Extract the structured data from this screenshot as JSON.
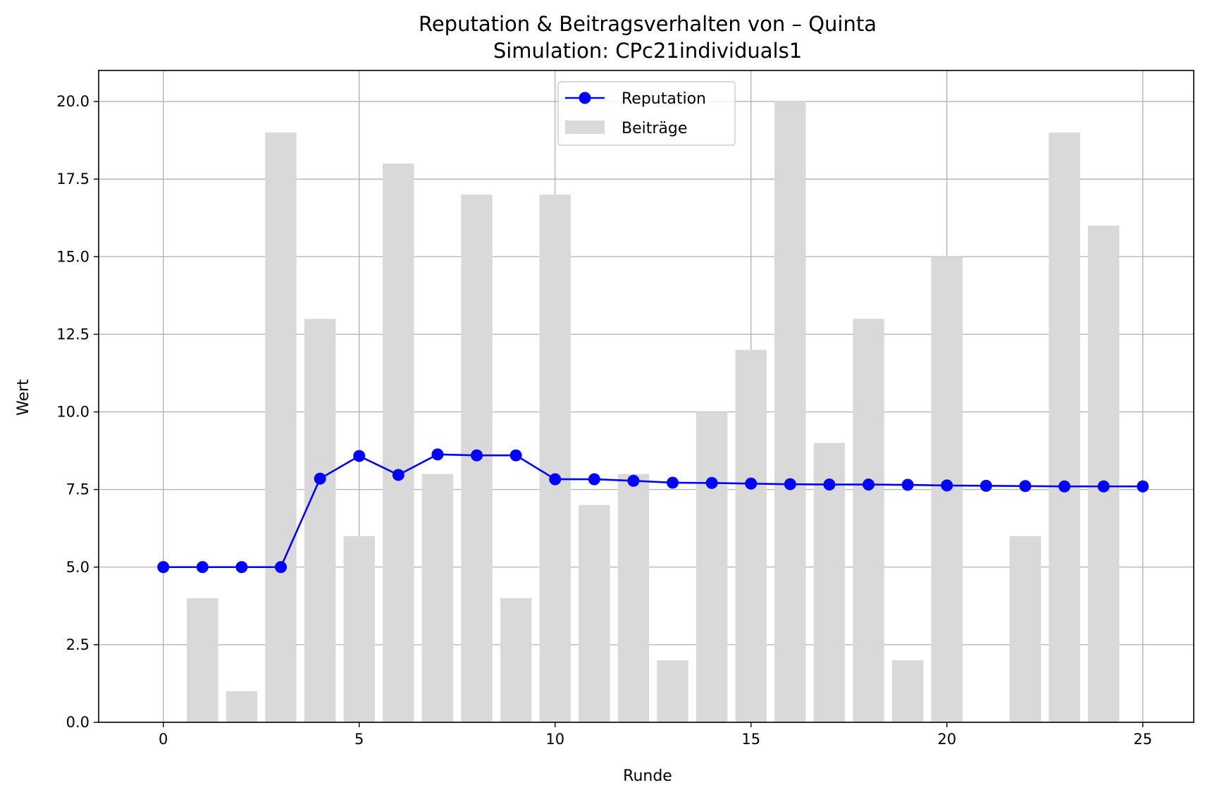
{
  "chart_data": {
    "type": "bar",
    "title": "Reputation & Beitragsverhalten von – Quinta",
    "subtitle": "Simulation: CPc21individuals1",
    "xlabel": "Runde",
    "ylabel": "Wert",
    "xlim": [
      -1.65,
      26.3
    ],
    "ylim": [
      0,
      21
    ],
    "x_ticks": [
      0,
      5,
      10,
      15,
      20,
      25
    ],
    "y_ticks": [
      0.0,
      2.5,
      5.0,
      7.5,
      10.0,
      12.5,
      15.0,
      17.5,
      20.0
    ],
    "grid": true,
    "legend_position": "top-center",
    "x": [
      0,
      1,
      2,
      3,
      4,
      5,
      6,
      7,
      8,
      9,
      10,
      11,
      12,
      13,
      14,
      15,
      16,
      17,
      18,
      19,
      20,
      21,
      22,
      23,
      24,
      25
    ],
    "series": [
      {
        "name": "Beiträge",
        "type": "bar",
        "color": "#d9d9d9",
        "values": [
          0,
          4,
          1,
          19,
          13,
          6,
          18,
          8,
          17,
          4,
          17,
          7,
          8,
          2,
          10,
          12,
          20,
          9,
          13,
          2,
          15,
          0,
          6,
          19,
          16,
          0
        ]
      },
      {
        "name": "Reputation",
        "type": "line",
        "color": "#0000ff",
        "values": [
          5.0,
          5.0,
          5.0,
          5.0,
          7.85,
          8.58,
          7.97,
          8.63,
          8.6,
          8.6,
          7.83,
          7.83,
          7.78,
          7.72,
          7.71,
          7.69,
          7.67,
          7.66,
          7.66,
          7.65,
          7.63,
          7.62,
          7.61,
          7.6,
          7.6,
          7.6
        ]
      }
    ]
  }
}
